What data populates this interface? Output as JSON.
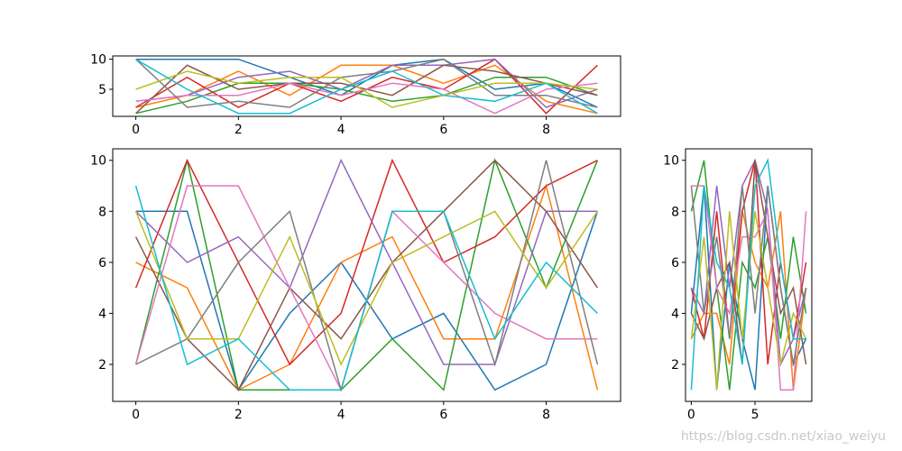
{
  "palette": [
    "#1f77b4",
    "#ff7f0e",
    "#2ca02c",
    "#d62728",
    "#9467bd",
    "#8c564b",
    "#e377c2",
    "#7f7f7f",
    "#bcbd22",
    "#17becf"
  ],
  "watermark": "https://blog.csdn.net/xiao_weiyu",
  "chart_data": [
    {
      "id": "top",
      "type": "line",
      "xlim": [
        -0.45,
        9.45
      ],
      "ylim": [
        0.5,
        10.55
      ],
      "xticks": [
        0,
        2,
        4,
        6,
        8
      ],
      "yticks": [
        5,
        10
      ],
      "x": [
        0,
        1,
        2,
        3,
        4,
        5,
        6,
        7,
        8,
        9
      ],
      "series": [
        {
          "values": [
            10,
            10,
            10,
            7,
            4,
            9,
            10,
            5,
            6,
            2
          ]
        },
        {
          "values": [
            2,
            4,
            8,
            4,
            9,
            9,
            6,
            9,
            3,
            1
          ]
        },
        {
          "values": [
            1,
            3,
            6,
            6,
            5,
            3,
            4,
            7,
            7,
            4
          ]
        },
        {
          "values": [
            2,
            7,
            2,
            6,
            3,
            7,
            5,
            10,
            1,
            9
          ]
        },
        {
          "values": [
            3,
            4,
            7,
            8,
            5,
            9,
            9,
            10,
            2,
            5
          ]
        },
        {
          "values": [
            1,
            9,
            5,
            6,
            6,
            4,
            9,
            8,
            6,
            4
          ]
        },
        {
          "values": [
            3,
            4,
            4,
            6,
            4,
            6,
            5,
            1,
            5,
            6
          ]
        },
        {
          "values": [
            10,
            2,
            3,
            2,
            7,
            8,
            10,
            4,
            4,
            2
          ]
        },
        {
          "values": [
            5,
            8,
            6,
            7,
            7,
            2,
            4,
            6,
            6,
            5
          ]
        },
        {
          "values": [
            10,
            5,
            1,
            1,
            5,
            8,
            4,
            3,
            6,
            1
          ]
        }
      ]
    },
    {
      "id": "main",
      "type": "line",
      "xlim": [
        -0.45,
        9.45
      ],
      "ylim": [
        0.55,
        10.45
      ],
      "xticks": [
        0,
        2,
        4,
        6,
        8
      ],
      "yticks": [
        2,
        4,
        6,
        8,
        10
      ],
      "x": [
        0,
        1,
        2,
        3,
        4,
        5,
        6,
        7,
        8,
        9
      ],
      "series": [
        {
          "values": [
            8,
            8,
            1,
            4,
            6,
            3,
            4,
            1,
            2,
            8
          ]
        },
        {
          "values": [
            6,
            5,
            1,
            2,
            6,
            7,
            3,
            3,
            9,
            1
          ]
        },
        {
          "values": [
            2,
            10,
            1,
            1,
            1,
            3,
            1,
            10,
            5,
            10
          ]
        },
        {
          "values": [
            5,
            10,
            6,
            2,
            4,
            10,
            6,
            7,
            9,
            10
          ]
        },
        {
          "values": [
            8,
            6,
            7,
            5,
            10,
            6,
            2,
            2,
            8,
            8
          ]
        },
        {
          "values": [
            7,
            3,
            1,
            5,
            3,
            6,
            8,
            10,
            8,
            5
          ]
        },
        {
          "values": [
            2,
            9,
            9,
            5,
            1,
            8,
            6,
            4,
            3,
            3
          ]
        },
        {
          "values": [
            2,
            3,
            6,
            8,
            1,
            8,
            8,
            2,
            10,
            2
          ]
        },
        {
          "values": [
            8,
            3,
            3,
            7,
            2,
            6,
            7,
            8,
            5,
            8
          ]
        },
        {
          "values": [
            9,
            2,
            3,
            1,
            1,
            8,
            8,
            3,
            6,
            4
          ]
        }
      ]
    },
    {
      "id": "right",
      "type": "line",
      "xlim": [
        -0.45,
        9.45
      ],
      "ylim": [
        0.55,
        10.45
      ],
      "xticks": [
        0,
        5
      ],
      "yticks": [
        2,
        4,
        6,
        8,
        10
      ],
      "x": [
        0,
        1,
        2,
        3,
        4,
        5,
        6,
        7,
        8,
        9
      ],
      "series": [
        {
          "values": [
            4,
            9,
            1,
            6,
            3,
            1,
            9,
            5,
            2,
            3
          ]
        },
        {
          "values": [
            3,
            4,
            4,
            2,
            8,
            6,
            5,
            8,
            1,
            5
          ]
        },
        {
          "values": [
            8,
            10,
            5,
            1,
            6,
            5,
            7,
            3,
            7,
            4
          ]
        },
        {
          "values": [
            5,
            3,
            8,
            3,
            8,
            10,
            2,
            6,
            3,
            6
          ]
        },
        {
          "values": [
            5,
            4,
            9,
            5,
            9,
            10,
            8,
            2,
            3,
            5
          ]
        },
        {
          "values": [
            4,
            3,
            5,
            6,
            2,
            10,
            7,
            4,
            5,
            2
          ]
        },
        {
          "values": [
            9,
            9,
            5,
            4,
            7,
            7,
            8,
            1,
            1,
            8
          ]
        },
        {
          "values": [
            9,
            4,
            7,
            3,
            9,
            4,
            9,
            5,
            2,
            5
          ]
        },
        {
          "values": [
            3,
            7,
            1,
            8,
            3,
            8,
            5,
            2,
            4,
            3
          ]
        },
        {
          "values": [
            1,
            9,
            6,
            5,
            2,
            9,
            10,
            6,
            3,
            3
          ]
        }
      ]
    }
  ]
}
